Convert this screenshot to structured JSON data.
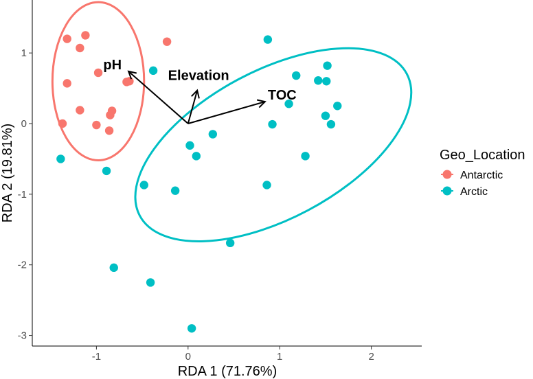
{
  "chart_data": {
    "type": "scatter",
    "xlabel": "RDA 1 (71.76%)",
    "ylabel": "RDA 2 (19.81%)",
    "xlim": [
      -1.7,
      2.55
    ],
    "ylim": [
      -3.15,
      1.75
    ],
    "xticks": [
      -1,
      0,
      1,
      2
    ],
    "yticks": [
      -3,
      -2,
      -1,
      0,
      1
    ],
    "grid": false,
    "legend": {
      "title": "Geo_Location",
      "position": "right",
      "entries": [
        {
          "label": "Antarctic",
          "color": "#F8766D"
        },
        {
          "label": "Arctic",
          "color": "#00BFC4"
        }
      ]
    },
    "series": [
      {
        "name": "Antarctic",
        "color": "#F8766D",
        "points": [
          [
            -1.32,
            1.2
          ],
          [
            -1.12,
            1.25
          ],
          [
            -1.18,
            1.07
          ],
          [
            -0.98,
            0.72
          ],
          [
            -0.23,
            1.16
          ],
          [
            -1.32,
            0.57
          ],
          [
            -0.67,
            0.59
          ],
          [
            -0.64,
            0.6
          ],
          [
            -1.18,
            0.19
          ],
          [
            -0.83,
            0.18
          ],
          [
            -0.85,
            0.12
          ],
          [
            -1.37,
            0.0
          ],
          [
            -1.0,
            -0.02
          ],
          [
            -0.86,
            -0.1
          ]
        ]
      },
      {
        "name": "Arctic",
        "color": "#00BFC4",
        "points": [
          [
            -0.38,
            0.75
          ],
          [
            0.87,
            1.19
          ],
          [
            1.52,
            0.82
          ],
          [
            1.18,
            0.68
          ],
          [
            1.42,
            0.61
          ],
          [
            1.51,
            0.6
          ],
          [
            1.1,
            0.28
          ],
          [
            1.63,
            0.25
          ],
          [
            1.5,
            0.11
          ],
          [
            1.56,
            -0.01
          ],
          [
            0.92,
            -0.01
          ],
          [
            0.27,
            -0.15
          ],
          [
            0.02,
            -0.31
          ],
          [
            0.09,
            -0.46
          ],
          [
            1.28,
            -0.46
          ],
          [
            -1.39,
            -0.5
          ],
          [
            -0.89,
            -0.67
          ],
          [
            -0.48,
            -0.87
          ],
          [
            -0.14,
            -0.95
          ],
          [
            0.86,
            -0.87
          ],
          [
            0.46,
            -1.69
          ],
          [
            -0.81,
            -2.04
          ],
          [
            -0.41,
            -2.25
          ],
          [
            0.04,
            -2.9
          ]
        ]
      }
    ],
    "ellipses": [
      {
        "group": "Antarctic",
        "color": "#F8766D",
        "center": [
          -0.98,
          0.6
        ],
        "semi_axes": [
          0.5,
          1.12
        ],
        "rotation_deg": 0
      },
      {
        "group": "Arctic",
        "color": "#00BFC4",
        "center": [
          0.93,
          -0.3
        ],
        "semi_axes": [
          1.65,
          1.05
        ],
        "rotation_deg": 28
      }
    ],
    "arrows": [
      {
        "label": "pH",
        "x": -0.65,
        "y": 0.74
      },
      {
        "label": "Elevation",
        "x": 0.1,
        "y": 0.47
      },
      {
        "label": "TOC",
        "x": 0.84,
        "y": 0.31
      }
    ]
  }
}
